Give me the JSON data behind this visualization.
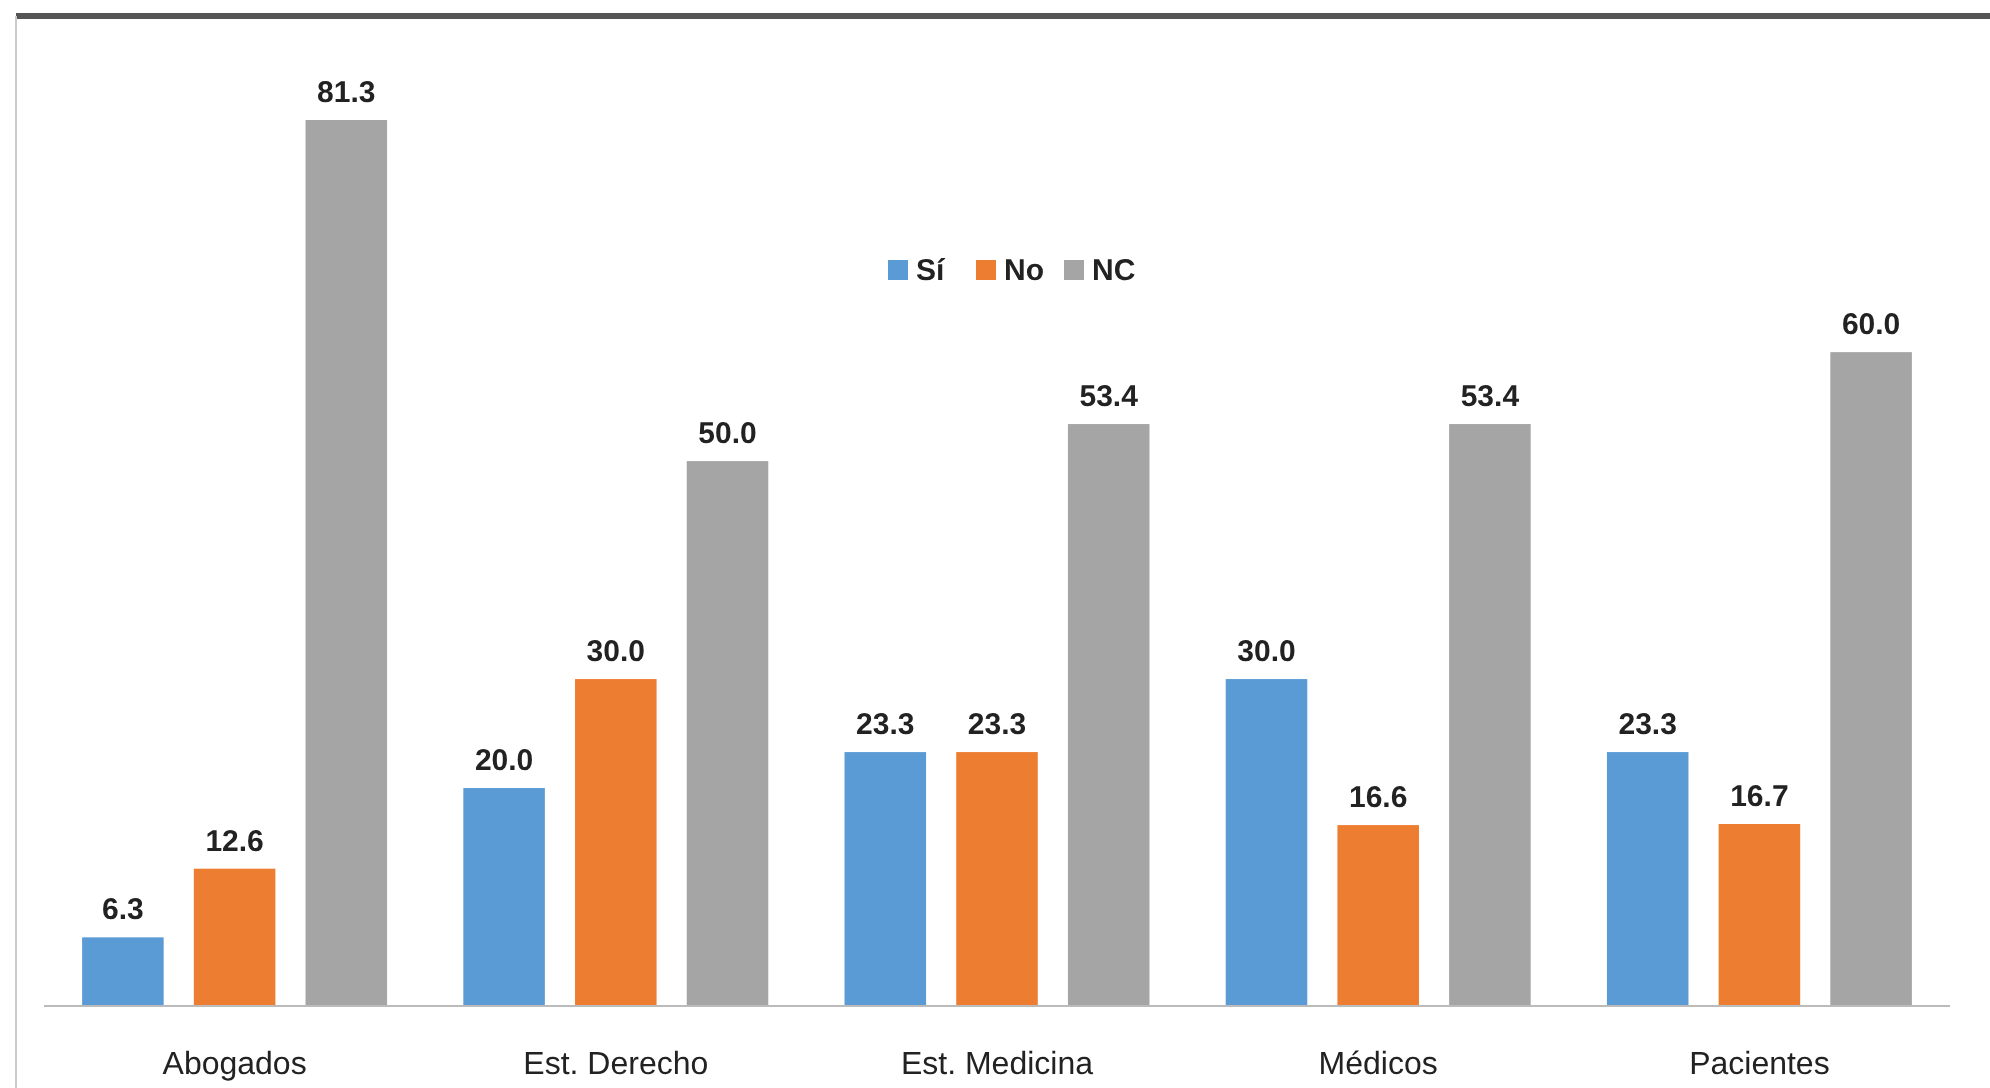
{
  "chart_data": {
    "type": "bar",
    "categories": [
      "Abogados",
      "Est. Derecho",
      "Est. Medicina",
      "Médicos",
      "Pacientes"
    ],
    "series": [
      {
        "name": "Sí",
        "color": "#5b9bd5",
        "values": [
          6.3,
          20.0,
          23.3,
          30.0,
          23.3
        ],
        "value_labels": [
          "6.3",
          "20.0",
          "23.3",
          "30.0",
          "23.3"
        ]
      },
      {
        "name": "No",
        "color": "#ed7d31",
        "values": [
          12.6,
          30.0,
          23.3,
          16.6,
          16.7
        ],
        "value_labels": [
          "12.6",
          "30.0",
          "23.3",
          "16.6",
          "16.7"
        ]
      },
      {
        "name": "NC",
        "color": "#a5a5a5",
        "values": [
          81.3,
          50.0,
          53.4,
          53.4,
          60.0
        ],
        "value_labels": [
          "81.3",
          "50.0",
          "53.4",
          "53.4",
          "60.0"
        ]
      }
    ],
    "legend": "top",
    "grid": false
  }
}
